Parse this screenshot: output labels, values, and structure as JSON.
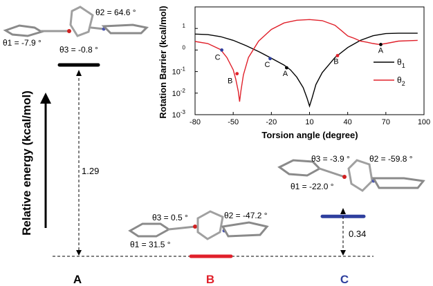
{
  "diagram": {
    "y_axis_label": "Relative energy (kcal/mol)",
    "gap_AC_label": "1.29",
    "gap_BC_label": "0.34",
    "colors": {
      "A": "#000000",
      "B": "#e0202a",
      "C": "#2e3f9e"
    },
    "levels": [
      {
        "id": "A",
        "name": "A",
        "relative_energy": 1.63
      },
      {
        "id": "B",
        "name": "B",
        "relative_energy": 0.0
      },
      {
        "id": "C",
        "name": "C",
        "relative_energy": 0.34
      }
    ],
    "conformers": {
      "A": {
        "theta1": "θ1 = -7.9 °",
        "theta2": "θ2 = 64.6 °",
        "theta3": "θ3 = -0.8 °"
      },
      "B": {
        "theta1": "θ1 = 31.5 °",
        "theta2": "θ2 = -47.2 °",
        "theta3": "θ3 = 0.5 °"
      },
      "C": {
        "theta1": "θ1 = -22.0 °",
        "theta2": "θ2 = -59.8 °",
        "theta3": "θ3 = -3.9 °"
      }
    }
  },
  "chart_data": {
    "type": "line",
    "xlabel": "Torsion angle (degree)",
    "ylabel": "Rotation Barrier (kcal/mol)",
    "y_scale": "log",
    "xlim": [
      -80,
      100
    ],
    "ylim": [
      0.001,
      100
    ],
    "x_ticks": [
      "-80",
      "-50",
      "-20",
      "10",
      "40",
      "70",
      "100"
    ],
    "y_ticks": [
      "10-3",
      "10-2",
      "10-1",
      "100",
      "101"
    ],
    "legend": "right",
    "series": [
      {
        "name": "θ1",
        "color": "#000000",
        "points": [
          [
            -80,
            5.5
          ],
          [
            -70,
            5.2
          ],
          [
            -60,
            4.2
          ],
          [
            -50,
            2.8
          ],
          [
            -40,
            1.6
          ],
          [
            -30,
            0.85
          ],
          [
            -20,
            0.42
          ],
          [
            -10,
            0.2
          ],
          [
            -5,
            0.12
          ],
          [
            0,
            0.055
          ],
          [
            5,
            0.018
          ],
          [
            8,
            0.006
          ],
          [
            10,
            0.0025
          ],
          [
            12,
            0.006
          ],
          [
            15,
            0.025
          ],
          [
            20,
            0.09
          ],
          [
            30,
            0.45
          ],
          [
            40,
            1.3
          ],
          [
            50,
            2.8
          ],
          [
            60,
            4.6
          ],
          [
            70,
            5.8
          ],
          [
            80,
            6.0
          ],
          [
            90,
            6.0
          ],
          [
            95,
            6.0
          ]
        ]
      },
      {
        "name": "θ2",
        "color": "#e0202a",
        "points": [
          [
            -80,
            2.5
          ],
          [
            -70,
            2.0
          ],
          [
            -60,
            1.05
          ],
          [
            -55,
            0.45
          ],
          [
            -50,
            0.12
          ],
          [
            -48,
            0.045
          ],
          [
            -46,
            0.012
          ],
          [
            -45,
            0.004
          ],
          [
            -44,
            0.012
          ],
          [
            -42,
            0.07
          ],
          [
            -38,
            0.45
          ],
          [
            -30,
            2.6
          ],
          [
            -20,
            9
          ],
          [
            -10,
            18
          ],
          [
            0,
            24
          ],
          [
            10,
            26
          ],
          [
            20,
            23
          ],
          [
            30,
            14
          ],
          [
            35,
            8
          ],
          [
            40,
            4.5
          ],
          [
            45,
            3.5
          ],
          [
            50,
            2.6
          ],
          [
            55,
            2.3
          ],
          [
            60,
            2.0
          ],
          [
            65,
            1.8
          ],
          [
            70,
            2.0
          ],
          [
            80,
            2.6
          ],
          [
            95,
            2.8
          ]
        ]
      }
    ],
    "marked_points": [
      {
        "label": "A",
        "series": "θ1",
        "x": -8,
        "y": 0.15,
        "color": "#000000"
      },
      {
        "label": "A",
        "series": "θ2",
        "x": 66,
        "y": 1.8,
        "color": "#000000"
      },
      {
        "label": "B",
        "series": "θ1",
        "x": 32,
        "y": 0.55,
        "color": "#e0202a"
      },
      {
        "label": "B",
        "series": "θ2",
        "x": -47,
        "y": 0.08,
        "color": "#e0202a"
      },
      {
        "label": "C",
        "series": "θ1",
        "x": -21,
        "y": 0.4,
        "color": "#2e3f9e"
      },
      {
        "label": "C",
        "series": "θ2",
        "x": -59,
        "y": 1.0,
        "color": "#2e3f9e"
      }
    ]
  }
}
